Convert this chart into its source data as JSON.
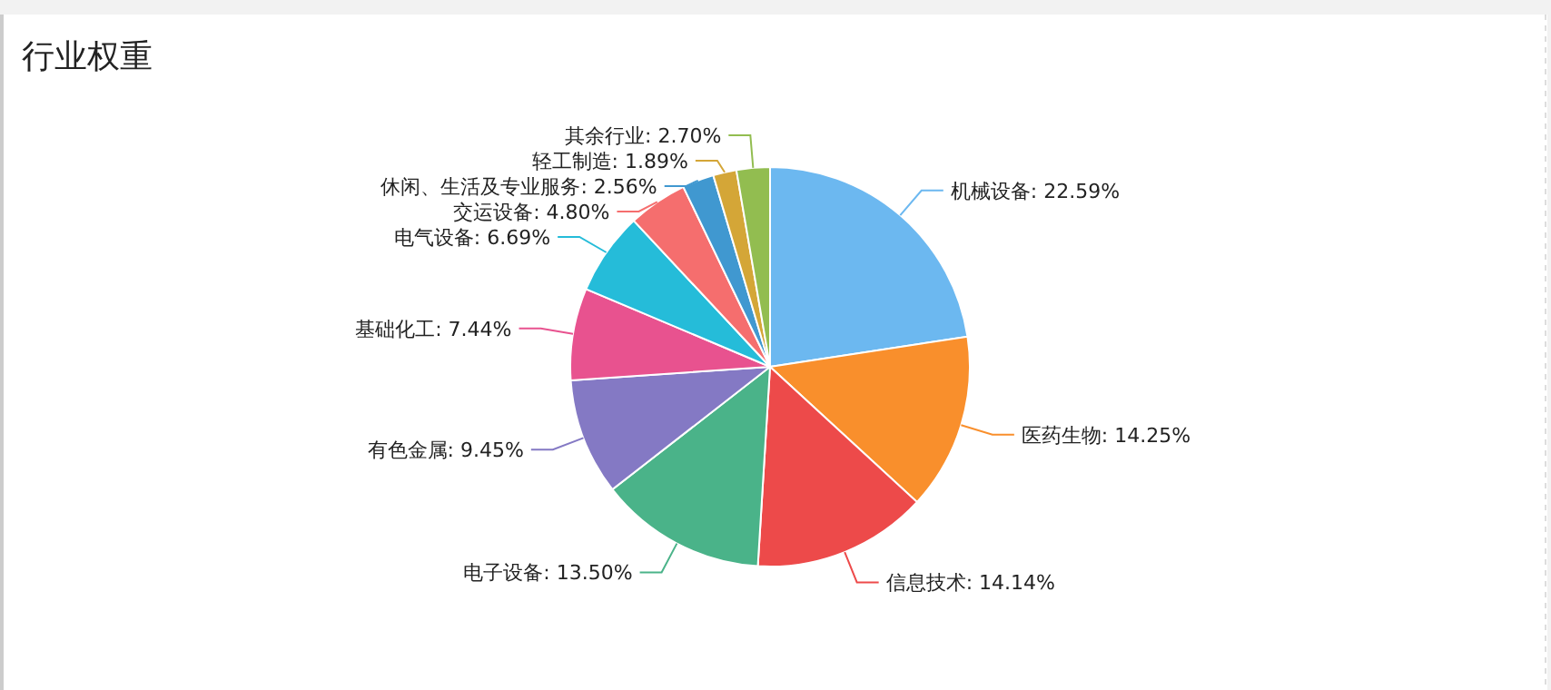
{
  "chart_data": {
    "type": "pie",
    "title": "行业权重",
    "categories": [
      "机械设备",
      "医药生物",
      "信息技术",
      "电子设备",
      "有色金属",
      "基础化工",
      "电气设备",
      "交运设备",
      "休闲、生活及专业服务",
      "轻工制造",
      "其余行业"
    ],
    "values": [
      22.59,
      14.25,
      14.14,
      13.5,
      9.45,
      7.44,
      6.69,
      4.8,
      2.56,
      1.89,
      2.7
    ],
    "value_labels": [
      "22.59%",
      "14.25%",
      "14.14%",
      "13.50%",
      "9.45%",
      "7.44%",
      "6.69%",
      "4.80%",
      "2.56%",
      "1.89%",
      "2.70%"
    ],
    "colors": [
      "#6cb8f0",
      "#f98f2c",
      "#ed4a4a",
      "#4ab389",
      "#8479c4",
      "#e8528f",
      "#25bcd9",
      "#f56e6e",
      "#4098d0",
      "#d4a637",
      "#92bd50"
    ]
  }
}
